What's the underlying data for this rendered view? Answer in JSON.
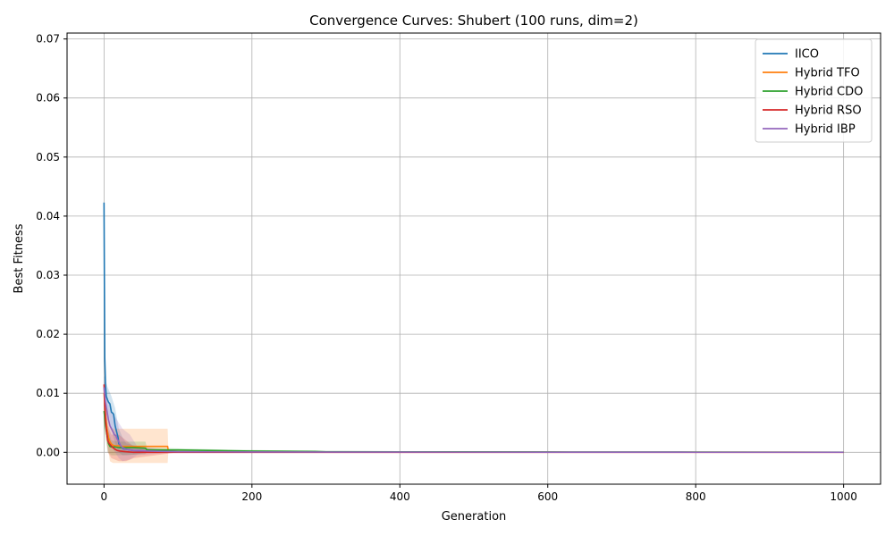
{
  "chart_data": {
    "type": "line",
    "title": "Convergence Curves: Shubert (100 runs, dim=2)",
    "xlabel": "Generation",
    "ylabel": "Best Fitness",
    "xlim": [
      -50,
      1050
    ],
    "ylim": [
      -0.0054,
      0.071
    ],
    "xticks": [
      0,
      200,
      400,
      600,
      800,
      1000
    ],
    "xtick_labels": [
      "0",
      "200",
      "400",
      "600",
      "800",
      "1000"
    ],
    "yticks": [
      0.0,
      0.01,
      0.02,
      0.03,
      0.04,
      0.05,
      0.06,
      0.07
    ],
    "ytick_labels": [
      "0.00",
      "0.01",
      "0.02",
      "0.03",
      "0.04",
      "0.05",
      "0.06",
      "0.07"
    ],
    "grid": true,
    "legend_position": "top-right",
    "series": [
      {
        "name": "IICO",
        "color": "#1f77b4",
        "x": [
          0,
          1,
          2,
          3,
          5,
          6,
          8,
          10,
          12,
          13,
          15,
          17,
          19,
          20,
          22,
          24,
          26,
          30,
          40,
          60,
          100,
          200,
          300,
          400,
          600,
          800,
          1000
        ],
        "y": [
          0.0423,
          0.016,
          0.0115,
          0.0095,
          0.0088,
          0.0085,
          0.0082,
          0.0068,
          0.0066,
          0.0064,
          0.0045,
          0.0035,
          0.0025,
          0.0015,
          0.001,
          0.0008,
          0.0006,
          0.0005,
          0.0003,
          0.0002,
          0.0001,
          8e-05,
          5e-05,
          3e-05,
          2e-05,
          1e-05,
          1e-05
        ],
        "band": [
          [
            0,
            0.009,
            0.013
          ],
          [
            5,
            0.0065,
            0.011
          ],
          [
            10,
            0.004,
            0.0095
          ],
          [
            15,
            0.0015,
            0.0075
          ],
          [
            20,
            0.0,
            0.004
          ],
          [
            25,
            -0.0005,
            0.0025
          ],
          [
            30,
            -0.0005,
            0.0015
          ],
          [
            40,
            -0.0004,
            0.0012
          ],
          [
            60,
            0.0,
            0.0004
          ],
          [
            100,
            0.0,
            0.0002
          ],
          [
            1000,
            0.0,
            0.0
          ]
        ]
      },
      {
        "name": "Hybrid TFO",
        "color": "#ff7f0e",
        "x": [
          0,
          2,
          4,
          6,
          8,
          10,
          12,
          15,
          20,
          25,
          30,
          40,
          60,
          86,
          87,
          100,
          200,
          400,
          600,
          800,
          1000
        ],
        "y": [
          0.01,
          0.006,
          0.004,
          0.0025,
          0.0018,
          0.0014,
          0.0012,
          0.0011,
          0.0011,
          0.001,
          0.001,
          0.001,
          0.001,
          0.001,
          0.0001,
          0.0001,
          8e-05,
          5e-05,
          3e-05,
          2e-05,
          1e-05
        ],
        "band": [
          [
            0,
            0.005,
            0.012
          ],
          [
            5,
            0.001,
            0.006
          ],
          [
            8,
            -0.0015,
            0.0045
          ],
          [
            12,
            -0.0018,
            0.004
          ],
          [
            20,
            -0.0018,
            0.004
          ],
          [
            40,
            -0.0018,
            0.004
          ],
          [
            60,
            -0.0018,
            0.004
          ],
          [
            86,
            -0.0018,
            0.004
          ],
          [
            87,
            0.0,
            0.0002
          ],
          [
            1000,
            0.0,
            0.0
          ]
        ]
      },
      {
        "name": "Hybrid CDO",
        "color": "#2ca02c",
        "x": [
          0,
          2,
          4,
          6,
          8,
          10,
          15,
          20,
          40,
          56,
          58,
          100,
          150,
          200,
          285,
          300,
          400,
          600,
          800,
          1000
        ],
        "y": [
          0.007,
          0.0045,
          0.003,
          0.0015,
          0.001,
          0.0009,
          0.0009,
          0.0008,
          0.0008,
          0.0007,
          0.0004,
          0.0004,
          0.0003,
          0.0002,
          0.00015,
          0.0001,
          8e-05,
          5e-05,
          3e-05,
          2e-05
        ],
        "band": [
          [
            0,
            0.004,
            0.01
          ],
          [
            5,
            0.0,
            0.004
          ],
          [
            10,
            -0.0005,
            0.002
          ],
          [
            20,
            -0.0005,
            0.0018
          ],
          [
            40,
            -0.0004,
            0.0018
          ],
          [
            56,
            -0.0003,
            0.0018
          ],
          [
            58,
            0.0,
            0.0008
          ],
          [
            150,
            0.0,
            0.0005
          ],
          [
            300,
            0.0,
            0.0002
          ],
          [
            1000,
            0.0,
            0.0
          ]
        ]
      },
      {
        "name": "Hybrid RSO",
        "color": "#d62728",
        "x": [
          0,
          1,
          2,
          3,
          4,
          5,
          7,
          9,
          12,
          15,
          18,
          22,
          30,
          40,
          100,
          200,
          400,
          600,
          800,
          1000
        ],
        "y": [
          0.0115,
          0.008,
          0.0055,
          0.004,
          0.003,
          0.002,
          0.0015,
          0.0012,
          0.0008,
          0.0005,
          0.0003,
          0.0002,
          0.0001,
          0.0,
          0.0,
          0.0,
          0.0,
          0.0,
          0.0,
          0.0
        ],
        "band": [
          [
            0,
            0.008,
            0.012
          ],
          [
            5,
            0.0,
            0.0045
          ],
          [
            10,
            -0.001,
            0.003
          ],
          [
            20,
            -0.0015,
            0.003
          ],
          [
            30,
            -0.0015,
            0.002
          ],
          [
            40,
            -0.001,
            0.001
          ],
          [
            100,
            0.0,
            0.0
          ],
          [
            1000,
            0.0,
            0.0
          ]
        ]
      },
      {
        "name": "Hybrid IBP",
        "color": "#9467bd",
        "x": [
          0,
          2,
          4,
          6,
          8,
          10,
          12,
          14,
          16,
          18,
          20,
          22,
          25,
          30,
          40,
          60,
          100,
          200,
          400,
          600,
          800,
          1000
        ],
        "y": [
          0.011,
          0.0085,
          0.007,
          0.0055,
          0.0045,
          0.004,
          0.0035,
          0.003,
          0.0028,
          0.0022,
          0.0018,
          0.0012,
          0.0008,
          0.0005,
          0.0003,
          0.0002,
          0.0001,
          5e-05,
          3e-05,
          2e-05,
          1e-05,
          1e-05
        ],
        "band": [
          [
            0,
            0.008,
            0.012
          ],
          [
            5,
            0.003,
            0.009
          ],
          [
            10,
            0.001,
            0.007
          ],
          [
            15,
            0.0,
            0.006
          ],
          [
            20,
            -0.001,
            0.005
          ],
          [
            25,
            -0.0015,
            0.004
          ],
          [
            35,
            -0.0012,
            0.003
          ],
          [
            45,
            -0.0005,
            0.001
          ],
          [
            100,
            0.0,
            0.0002
          ],
          [
            1000,
            0.0,
            0.0
          ]
        ]
      }
    ]
  }
}
